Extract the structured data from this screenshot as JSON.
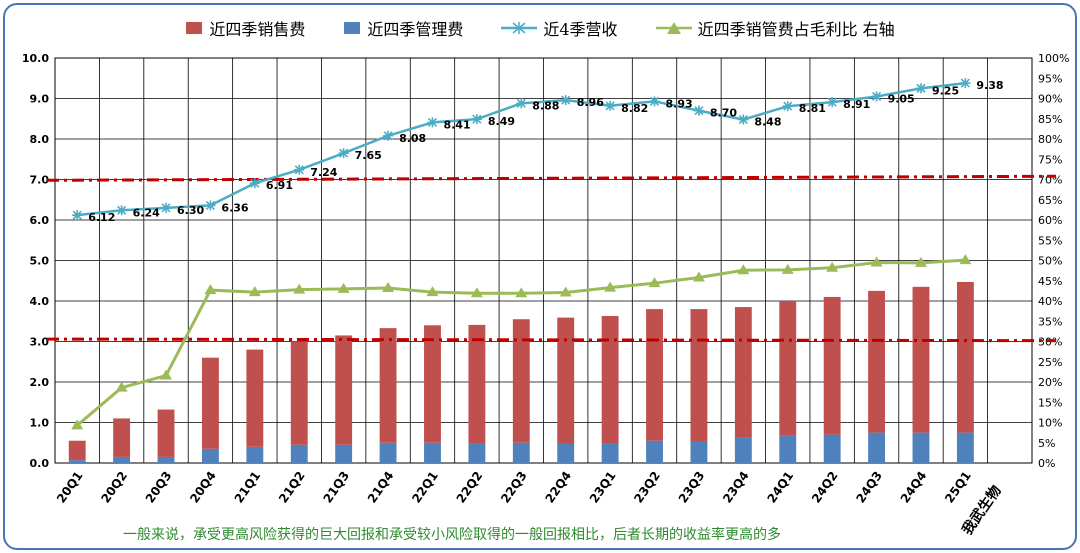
{
  "legend": [
    {
      "label": "近四季销售费",
      "color": "#c0504d",
      "kind": "bar"
    },
    {
      "label": "近四季管理费",
      "color": "#4f81bd",
      "kind": "bar"
    },
    {
      "label": "近4季营收",
      "color": "#4bacc6",
      "kind": "line-star"
    },
    {
      "label": "近四季销管费占毛利比 右轴",
      "color": "#9bbb59",
      "kind": "line-triangle"
    }
  ],
  "footnote": "一般来说，承受更高风险获得的巨大回报和承受较小风险取得的一般回报相比，后者长期的收益率更高的多",
  "watermark": "我武生物",
  "chart_data": {
    "type": "bar",
    "categories": [
      "20Q1",
      "20Q2",
      "20Q3",
      "20Q4",
      "21Q1",
      "21Q2",
      "21Q3",
      "21Q4",
      "22Q1",
      "22Q2",
      "22Q3",
      "22Q4",
      "23Q1",
      "23Q2",
      "23Q3",
      "23Q4",
      "24Q1",
      "24Q2",
      "24Q3",
      "24Q4",
      "25Q1"
    ],
    "y_left": {
      "min": 0,
      "max": 10,
      "step": 1,
      "ticks": [
        "0.0",
        "1.0",
        "2.0",
        "3.0",
        "4.0",
        "5.0",
        "6.0",
        "7.0",
        "8.0",
        "9.0",
        "10.0"
      ]
    },
    "y_right": {
      "min": 0,
      "max": 100,
      "step": 5,
      "unit": "%"
    },
    "grid": true,
    "series": [
      {
        "name": "近四季销售费",
        "type": "stacked-bar",
        "color": "#c0504d",
        "values": [
          0.48,
          0.95,
          1.17,
          2.25,
          2.4,
          2.55,
          2.7,
          2.83,
          2.9,
          2.93,
          3.05,
          3.12,
          3.15,
          3.25,
          3.27,
          3.23,
          3.33,
          3.4,
          3.5,
          3.6,
          3.72
        ]
      },
      {
        "name": "近四季管理费",
        "type": "stacked-bar",
        "color": "#4f81bd",
        "values": [
          0.07,
          0.15,
          0.15,
          0.35,
          0.4,
          0.45,
          0.45,
          0.5,
          0.5,
          0.48,
          0.5,
          0.47,
          0.48,
          0.55,
          0.53,
          0.62,
          0.67,
          0.7,
          0.75,
          0.75,
          0.75
        ]
      },
      {
        "name": "近4季营收",
        "type": "line",
        "axis": "left",
        "color": "#4bacc6",
        "values": [
          6.12,
          6.24,
          6.3,
          6.36,
          6.91,
          7.24,
          7.65,
          8.08,
          8.41,
          8.49,
          8.88,
          8.96,
          8.82,
          8.93,
          8.7,
          8.48,
          8.81,
          8.91,
          9.05,
          9.25,
          9.38
        ],
        "labels": [
          "6.12",
          "6.24",
          "6.30",
          "6.36",
          "6.91",
          "7.24",
          "7.65",
          "8.08",
          "8.41",
          "8.49",
          "8.88",
          "8.96",
          "8.82",
          "8.93",
          "8.70",
          "8.48",
          "8.81",
          "8.91",
          "9.05",
          "9.25",
          "9.38"
        ]
      },
      {
        "name": "近四季销管费占毛利比",
        "type": "line",
        "axis": "right",
        "color": "#9bbb59",
        "values": [
          9.3,
          18.6,
          21.6,
          42.7,
          42.2,
          42.8,
          43.0,
          43.2,
          42.2,
          41.9,
          41.9,
          42.1,
          43.3,
          44.4,
          45.8,
          47.6,
          47.7,
          48.2,
          49.5,
          49.4,
          50.1
        ]
      }
    ],
    "reference_lines": [
      {
        "axis": "left",
        "from": 6.98,
        "to": 7.08,
        "color": "#c00000"
      },
      {
        "axis": "left",
        "from": 3.06,
        "to": 3.02,
        "color": "#c00000"
      }
    ]
  }
}
